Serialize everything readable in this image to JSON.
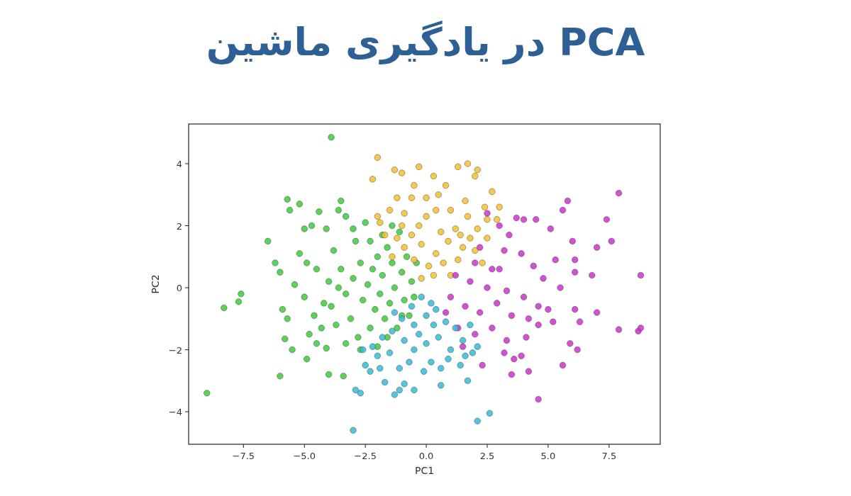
{
  "chart_data": {
    "type": "scatter",
    "title": "PCA در یادگیری ماشین",
    "xlabel": "PC1",
    "ylabel": "PC2",
    "xlim": [
      -9.75,
      9.6
    ],
    "ylim": [
      -5.05,
      5.28
    ],
    "xticks": [
      {
        "value": -7.5,
        "label": "−7.5"
      },
      {
        "value": -5,
        "label": "−5.0"
      },
      {
        "value": -2.5,
        "label": "−2.5"
      },
      {
        "value": 0,
        "label": "0.0"
      },
      {
        "value": 2.5,
        "label": "2.5"
      },
      {
        "value": 5,
        "label": "5.0"
      },
      {
        "value": 7.5,
        "label": "7.5"
      }
    ],
    "yticks": [
      {
        "value": -4,
        "label": "−4"
      },
      {
        "value": -2,
        "label": "−2"
      },
      0,
      2,
      4
    ],
    "marker": "circle",
    "series": [
      {
        "color": "#3ccc3c",
        "x": [
          -3.9,
          -9.0,
          -8.3,
          -7.6,
          -7.7,
          -6.5,
          -6.0,
          -5.7,
          -5.2,
          -5.6,
          -6.2,
          -6.0,
          -5.9,
          -5.8,
          -5.7,
          -5.5,
          -4.0,
          -3.4,
          -4.5,
          -4.1,
          -3.5,
          -3.6,
          -3.3,
          -4.4,
          -4.7,
          -4.1,
          -5.0,
          -5.2,
          -4.9,
          -4.5,
          -5.4,
          -5.0,
          -4.6,
          -4.2,
          -4.0,
          -3.8,
          -3.5,
          -3.3,
          -3.0,
          -3.1,
          -2.9,
          -2.7,
          -2.6,
          -2.4,
          -2.3,
          -2.2,
          -2.1,
          -2.0,
          -1.9,
          -1.8,
          -1.7,
          -1.6,
          -1.5,
          -1.4,
          -1.3,
          -1.2,
          -1.0,
          -0.9,
          -0.8,
          -0.6,
          -0.5,
          -0.4,
          -1.1,
          -1.4,
          -2.5,
          -2.8,
          -3.3,
          -2.0,
          -1.6,
          -3.7,
          -4.3,
          -3.9,
          -2.7,
          -3.6,
          -1.0,
          -0.7,
          -2.3,
          -1.8,
          -3.0,
          -4.8,
          -4.9
        ],
        "values": [
          4.85,
          -3.4,
          -0.65,
          -0.2,
          -0.45,
          1.5,
          -2.85,
          2.85,
          2.7,
          2.5,
          0.8,
          0.5,
          -0.7,
          -1.65,
          -1.0,
          -2.0,
          -2.8,
          -2.85,
          -1.8,
          -1.95,
          2.8,
          2.5,
          2.3,
          2.45,
          2.0,
          1.9,
          1.9,
          1.1,
          0.8,
          0.6,
          0.1,
          -0.3,
          -0.9,
          -0.5,
          0.2,
          1.2,
          0.6,
          -0.2,
          0.3,
          -1.0,
          1.5,
          0.8,
          -0.4,
          0.1,
          -1.3,
          0.6,
          -0.7,
          1.0,
          -0.2,
          0.4,
          -1.0,
          1.3,
          -0.5,
          0.8,
          0.0,
          -1.3,
          0.5,
          -0.4,
          1.0,
          0.2,
          -0.3,
          0.8,
          1.8,
          2.0,
          2.1,
          -1.6,
          -1.8,
          -1.9,
          -1.6,
          -1.2,
          -1.3,
          -0.6,
          -2.0,
          0.0,
          -0.9,
          -0.9,
          1.5,
          1.7,
          1.9,
          -1.5,
          -2.3
        ]
      },
      {
        "color": "#f5c12e",
        "x": [
          -2.0,
          -2.2,
          -1.3,
          -0.3,
          0.3,
          -1.0,
          -0.5,
          1.7,
          2.1,
          2.0,
          1.3,
          2.7,
          -1.9,
          -1.5,
          -2.0,
          -1.2,
          -0.6,
          0.0,
          0.8,
          1.6,
          2.4,
          3.0,
          2.9,
          -0.9,
          0.4,
          1.0,
          1.7,
          -1.7,
          -1.2,
          -0.3,
          0.6,
          1.2,
          2.1,
          2.5,
          -0.9,
          -0.2,
          0.4,
          0.9,
          1.5,
          2.0,
          -0.5,
          0.1,
          0.7,
          1.3,
          -0.2,
          0.3,
          1.0,
          -1.4,
          2.3,
          0.0,
          -0.6,
          1.4,
          -1.0,
          0.5,
          2.5,
          1.8
        ],
        "values": [
          4.2,
          3.5,
          3.8,
          3.9,
          3.6,
          3.7,
          3.3,
          4.0,
          3.8,
          3.6,
          3.9,
          3.1,
          2.1,
          2.5,
          2.3,
          2.9,
          2.9,
          2.9,
          3.3,
          2.8,
          2.6,
          2.6,
          2.2,
          2.4,
          2.5,
          2.5,
          2.3,
          1.7,
          1.6,
          2.0,
          1.8,
          1.9,
          1.9,
          1.6,
          1.3,
          1.4,
          1.1,
          1.5,
          1.3,
          1.2,
          0.9,
          0.7,
          0.8,
          0.9,
          0.3,
          0.4,
          0.4,
          1.0,
          0.8,
          2.3,
          1.7,
          1.7,
          2.0,
          3.0,
          2.2,
          1.6
        ]
      },
      {
        "color": "#cc33cc",
        "x": [
          7.9,
          7.4,
          7.6,
          5.8,
          5.6,
          4.5,
          3.7,
          4.0,
          5.1,
          6.0,
          6.1,
          7.0,
          8.8,
          6.8,
          6.1,
          5.3,
          4.4,
          3.4,
          3.0,
          2.5,
          2.2,
          3.2,
          3.9,
          2.0,
          3.0,
          4.8,
          5.5,
          1.2,
          1.8,
          2.5,
          3.3,
          4.0,
          4.6,
          1.0,
          1.6,
          2.2,
          2.9,
          3.5,
          4.2,
          5.0,
          6.1,
          6.3,
          7.0,
          7.9,
          8.7,
          8.8,
          1.3,
          2.0,
          2.7,
          3.3,
          4.1,
          4.6,
          5.2,
          5.9,
          6.2,
          5.6,
          2.3,
          3.2,
          3.6,
          3.5,
          4.2,
          4.6,
          3.9,
          1.5,
          0.8,
          2.7
        ],
        "values": [
          3.05,
          2.2,
          1.5,
          2.8,
          2.5,
          2.2,
          2.25,
          2.2,
          1.9,
          1.5,
          0.9,
          1.3,
          0.4,
          0.4,
          0.5,
          0.9,
          0.7,
          1.7,
          2.0,
          2.4,
          1.3,
          1.2,
          1.1,
          0.8,
          0.6,
          0.3,
          0.0,
          0.4,
          0.2,
          0.0,
          -0.1,
          -0.3,
          -0.6,
          -0.3,
          -0.6,
          -0.8,
          -0.5,
          -0.9,
          -1.0,
          -0.7,
          -0.7,
          -1.1,
          -0.8,
          -1.35,
          -1.4,
          -1.3,
          -1.3,
          -1.5,
          -1.3,
          -1.7,
          -1.6,
          -1.2,
          -1.1,
          -1.8,
          -2.0,
          -2.5,
          -2.5,
          -2.1,
          -2.3,
          -2.8,
          -2.7,
          -3.6,
          -2.2,
          -1.9,
          -0.8,
          0.6
        ]
      },
      {
        "color": "#33bcd8",
        "x": [
          -3.0,
          2.6,
          2.1,
          -2.7,
          -2.9,
          -1.3,
          -1.1,
          -0.5,
          -1.7,
          -0.9,
          0.6,
          1.7,
          -1.9,
          -2.3,
          -1.1,
          0.2,
          0.6,
          1.4,
          1.9,
          2.1,
          -2.6,
          -2.2,
          -1.8,
          -1.4,
          -0.9,
          -0.5,
          0.0,
          0.5,
          1.0,
          1.5,
          -1.5,
          -1.0,
          -0.5,
          0.0,
          0.4,
          0.8,
          1.2,
          -0.2,
          0.2,
          -0.6,
          -1.3,
          -0.1,
          0.9,
          -2.0,
          1.6,
          -0.7,
          0.3,
          -0.3,
          1.8,
          -2.5
        ],
        "values": [
          -4.6,
          -4.05,
          -4.3,
          -3.4,
          -3.3,
          -3.45,
          -3.3,
          -3.3,
          -3.05,
          -3.1,
          -3.15,
          -3.0,
          -2.6,
          -2.7,
          -2.6,
          -2.4,
          -2.6,
          -2.5,
          -2.1,
          -1.9,
          -2.0,
          -1.9,
          -1.6,
          -1.4,
          -1.7,
          -2.0,
          -1.8,
          -1.6,
          -2.0,
          -1.7,
          -2.1,
          -1.0,
          -1.2,
          -0.9,
          -0.7,
          -1.1,
          -1.3,
          -0.3,
          -0.5,
          -0.6,
          -0.8,
          -2.7,
          -2.3,
          -2.2,
          -2.2,
          -2.4,
          -1.2,
          -1.5,
          -1.2,
          -2.5
        ]
      }
    ]
  }
}
